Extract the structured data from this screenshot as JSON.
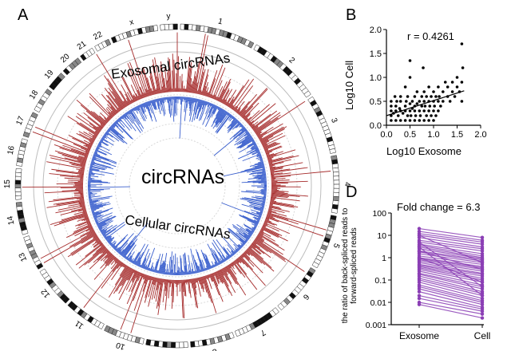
{
  "panels": {
    "a": "A",
    "b": "B",
    "d": "D"
  },
  "circos": {
    "center_label": "circRNAs",
    "outer_track_label": "Exosomal  circRNAs",
    "inner_track_label": "Cellular  circRNAs",
    "chromosomes": [
      "1",
      "2",
      "3",
      "4",
      "5",
      "6",
      "7",
      "8",
      "9",
      "10",
      "11",
      "12",
      "13",
      "14",
      "15",
      "16",
      "17",
      "18",
      "19",
      "20",
      "21",
      "22",
      "x",
      "y"
    ],
    "exosomal_color": "#a52a2a",
    "cellular_color": "#3a5fcd"
  },
  "chart_data": [
    {
      "type": "scatter",
      "title": "r = 0.4261",
      "xlabel": "Log10 Exosome",
      "ylabel": "Log10 Cell",
      "xlim": [
        0.0,
        2.0
      ],
      "ylim": [
        0.0,
        2.0
      ],
      "xticks": [
        "0.0",
        "0.5",
        "1.0",
        "1.5",
        "2.0"
      ],
      "yticks": [
        "0.0",
        "0.5",
        "1.0",
        "1.5",
        "2.0"
      ],
      "points": [
        [
          0.1,
          0.1
        ],
        [
          0.1,
          0.3
        ],
        [
          0.1,
          0.4
        ],
        [
          0.1,
          0.5
        ],
        [
          0.1,
          0.2
        ],
        [
          0.15,
          0.25
        ],
        [
          0.18,
          0.6
        ],
        [
          0.2,
          0.1
        ],
        [
          0.2,
          0.3
        ],
        [
          0.2,
          0.4
        ],
        [
          0.22,
          0.5
        ],
        [
          0.25,
          0.2
        ],
        [
          0.28,
          0.35
        ],
        [
          0.3,
          0.1
        ],
        [
          0.3,
          0.5
        ],
        [
          0.3,
          0.3
        ],
        [
          0.3,
          0.6
        ],
        [
          0.35,
          0.25
        ],
        [
          0.4,
          0.1
        ],
        [
          0.4,
          0.3
        ],
        [
          0.4,
          0.4
        ],
        [
          0.4,
          0.8
        ],
        [
          0.42,
          0.5
        ],
        [
          0.45,
          0.2
        ],
        [
          0.45,
          0.6
        ],
        [
          0.5,
          0.1
        ],
        [
          0.5,
          0.3
        ],
        [
          0.5,
          0.45
        ],
        [
          0.5,
          1.0
        ],
        [
          0.5,
          1.35
        ],
        [
          0.52,
          0.2
        ],
        [
          0.55,
          0.5
        ],
        [
          0.55,
          0.35
        ],
        [
          0.6,
          0.1
        ],
        [
          0.6,
          0.3
        ],
        [
          0.6,
          0.4
        ],
        [
          0.6,
          0.6
        ],
        [
          0.62,
          0.2
        ],
        [
          0.65,
          0.45
        ],
        [
          0.65,
          0.7
        ],
        [
          0.7,
          0.1
        ],
        [
          0.7,
          0.3
        ],
        [
          0.7,
          0.5
        ],
        [
          0.72,
          0.2
        ],
        [
          0.75,
          0.4
        ],
        [
          0.75,
          0.6
        ],
        [
          0.78,
          1.2
        ],
        [
          0.8,
          0.1
        ],
        [
          0.8,
          0.3
        ],
        [
          0.8,
          0.5
        ],
        [
          0.8,
          0.7
        ],
        [
          0.82,
          0.4
        ],
        [
          0.85,
          0.2
        ],
        [
          0.85,
          0.6
        ],
        [
          0.9,
          0.1
        ],
        [
          0.9,
          0.3
        ],
        [
          0.9,
          0.5
        ],
        [
          0.9,
          0.8
        ],
        [
          0.92,
          0.4
        ],
        [
          0.95,
          0.2
        ],
        [
          0.95,
          0.6
        ],
        [
          1.0,
          0.1
        ],
        [
          1.0,
          0.3
        ],
        [
          1.0,
          0.5
        ],
        [
          1.0,
          0.7
        ],
        [
          1.02,
          0.4
        ],
        [
          1.05,
          0.2
        ],
        [
          1.05,
          0.6
        ],
        [
          1.1,
          0.3
        ],
        [
          1.1,
          0.5
        ],
        [
          1.1,
          0.8
        ],
        [
          1.12,
          0.6
        ],
        [
          1.15,
          0.4
        ],
        [
          1.2,
          0.5
        ],
        [
          1.2,
          0.7
        ],
        [
          1.25,
          0.9
        ],
        [
          1.3,
          0.6
        ],
        [
          1.3,
          0.8
        ],
        [
          1.35,
          0.5
        ],
        [
          1.4,
          0.7
        ],
        [
          1.4,
          0.9
        ],
        [
          1.45,
          0.6
        ],
        [
          1.5,
          0.8
        ],
        [
          1.5,
          1.0
        ],
        [
          1.55,
          0.7
        ],
        [
          1.6,
          1.7
        ],
        [
          1.6,
          0.5
        ],
        [
          1.6,
          0.9
        ],
        [
          1.62,
          1.2
        ]
      ],
      "fit_line": [
        [
          0.0,
          0.2
        ],
        [
          1.65,
          0.72
        ]
      ]
    },
    {
      "type": "line",
      "title": "Fold change = 6.3",
      "ylabel": "the ratio of back-spliced reads to forward-spliced reads",
      "categories": [
        "Exosome",
        "Cell"
      ],
      "yscale": "log",
      "ylim": [
        0.001,
        100
      ],
      "yticks": [
        "0.001",
        "0.01",
        "0.1",
        "1",
        "10",
        "100"
      ],
      "color": "#8b3fb5",
      "series_pairs": [
        [
          20,
          8
        ],
        [
          15,
          6
        ],
        [
          12,
          5
        ],
        [
          10,
          4
        ],
        [
          8,
          3
        ],
        [
          6,
          2.5
        ],
        [
          5,
          2
        ],
        [
          4,
          1.5
        ],
        [
          3.5,
          1.2
        ],
        [
          3,
          1
        ],
        [
          2.5,
          0.9
        ],
        [
          2,
          0.8
        ],
        [
          1.8,
          0.7
        ],
        [
          1.5,
          0.6
        ],
        [
          1.2,
          0.5
        ],
        [
          1,
          0.4
        ],
        [
          0.9,
          0.35
        ],
        [
          0.8,
          0.3
        ],
        [
          0.7,
          0.25
        ],
        [
          0.6,
          0.2
        ],
        [
          0.5,
          0.18
        ],
        [
          0.45,
          0.15
        ],
        [
          0.4,
          0.12
        ],
        [
          0.35,
          0.1
        ],
        [
          0.3,
          0.08
        ],
        [
          0.25,
          0.06
        ],
        [
          0.2,
          0.05
        ],
        [
          0.18,
          0.04
        ],
        [
          0.15,
          0.03
        ],
        [
          0.12,
          0.025
        ],
        [
          0.1,
          0.02
        ],
        [
          0.08,
          0.015
        ],
        [
          0.06,
          0.012
        ],
        [
          0.05,
          0.01
        ],
        [
          0.04,
          0.008
        ],
        [
          0.03,
          0.006
        ],
        [
          0.02,
          0.005
        ],
        [
          0.015,
          0.004
        ],
        [
          0.01,
          0.003
        ],
        [
          0.008,
          0.002
        ],
        [
          10,
          0.6
        ],
        [
          5,
          0.05
        ],
        [
          3,
          0.02
        ],
        [
          2,
          0.3
        ],
        [
          1,
          0.08
        ]
      ]
    }
  ]
}
